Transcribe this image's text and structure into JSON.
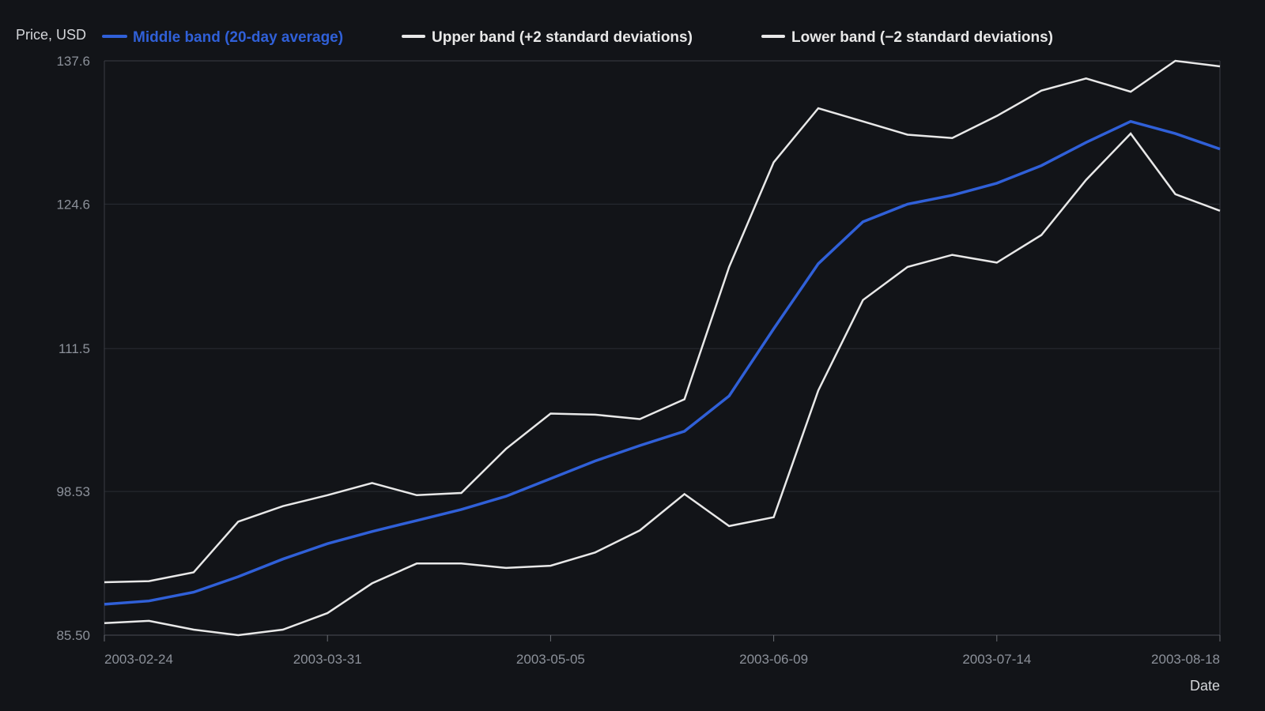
{
  "chart_data": {
    "type": "line",
    "ylabel": "Price, USD",
    "xlabel": "Date",
    "y_ticks": [
      "85.50",
      "98.53",
      "111.5",
      "124.6",
      "137.6"
    ],
    "ylim": [
      85.5,
      137.6
    ],
    "x_ticks": [
      "2003-02-24",
      "2003-03-31",
      "2003-05-05",
      "2003-06-09",
      "2003-07-14",
      "2003-08-18"
    ],
    "x": [
      "2003-02-24",
      "2003-03-03",
      "2003-03-10",
      "2003-03-17",
      "2003-03-24",
      "2003-03-31",
      "2003-04-07",
      "2003-04-14",
      "2003-04-21",
      "2003-04-28",
      "2003-05-05",
      "2003-05-12",
      "2003-05-19",
      "2003-05-26",
      "2003-06-02",
      "2003-06-09",
      "2003-06-16",
      "2003-06-23",
      "2003-06-30",
      "2003-07-07",
      "2003-07-14",
      "2003-07-21",
      "2003-07-28",
      "2003-08-04",
      "2003-08-11",
      "2003-08-18"
    ],
    "grid": true,
    "legend_position": "top",
    "series": [
      {
        "name": "Middle band (20-day average)",
        "color": "#3060d8",
        "values": [
          88.3,
          88.6,
          89.4,
          90.8,
          92.4,
          93.8,
          94.9,
          95.9,
          96.9,
          98.1,
          99.7,
          101.3,
          102.7,
          104.0,
          107.2,
          113.3,
          119.2,
          123.0,
          124.6,
          125.4,
          126.5,
          128.1,
          130.2,
          132.1,
          131.0,
          129.6
        ]
      },
      {
        "name": "Upper band (+2 standard deviations)",
        "color": "#e8e8e8",
        "values": [
          90.3,
          90.4,
          91.2,
          95.8,
          97.2,
          98.2,
          99.3,
          98.2,
          98.4,
          102.4,
          105.6,
          105.5,
          105.1,
          106.9,
          118.9,
          128.4,
          133.3,
          132.1,
          130.9,
          130.6,
          132.6,
          134.9,
          136.0,
          134.8,
          137.6,
          137.1
        ]
      },
      {
        "name": "Lower band (−2 standard deviations)",
        "color": "#e8e8e8",
        "values": [
          86.6,
          86.8,
          86.0,
          85.5,
          86.0,
          87.5,
          90.2,
          92.0,
          92.0,
          91.6,
          91.8,
          93.0,
          95.0,
          98.3,
          95.4,
          96.2,
          107.7,
          115.9,
          118.9,
          120.0,
          119.3,
          121.8,
          126.8,
          131.0,
          125.5,
          124.0
        ]
      }
    ]
  }
}
